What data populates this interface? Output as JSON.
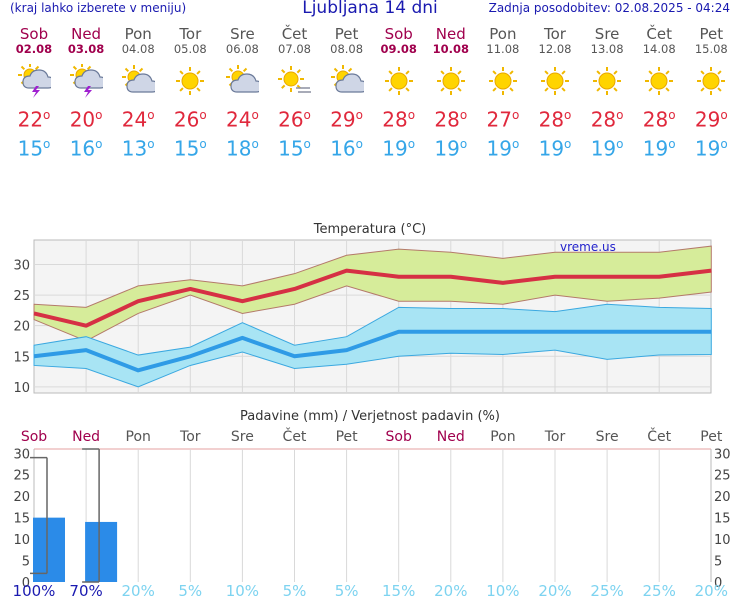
{
  "header": {
    "left_note": "(kraj lahko izberete v meniju)",
    "title": "Ljubljana 14 dni",
    "updated": "Zadnja posodobitev: 02.08.2025 - 04:24"
  },
  "days": [
    {
      "name": "Sob",
      "date": "02.08",
      "weekend": true,
      "icon": "sun-cloud-lightning-icon",
      "max": "22",
      "min": "15"
    },
    {
      "name": "Ned",
      "date": "03.08",
      "weekend": true,
      "icon": "sun-cloud-lightning-icon",
      "max": "20",
      "min": "16"
    },
    {
      "name": "Pon",
      "date": "04.08",
      "weekend": false,
      "icon": "sun-cloud-icon",
      "max": "24",
      "min": "13"
    },
    {
      "name": "Tor",
      "date": "05.08",
      "weekend": false,
      "icon": "sun-icon",
      "max": "26",
      "min": "15"
    },
    {
      "name": "Sre",
      "date": "06.08",
      "weekend": false,
      "icon": "sun-cloud-icon",
      "max": "24",
      "min": "18"
    },
    {
      "name": "Čet",
      "date": "07.08",
      "weekend": false,
      "icon": "sun-haze-icon",
      "max": "26",
      "min": "15"
    },
    {
      "name": "Pet",
      "date": "08.08",
      "weekend": false,
      "icon": "sun-cloud-icon",
      "max": "29",
      "min": "16"
    },
    {
      "name": "Sob",
      "date": "09.08",
      "weekend": true,
      "icon": "sun-icon",
      "max": "28",
      "min": "19"
    },
    {
      "name": "Ned",
      "date": "10.08",
      "weekend": true,
      "icon": "sun-icon",
      "max": "28",
      "min": "19"
    },
    {
      "name": "Pon",
      "date": "11.08",
      "weekend": false,
      "icon": "sun-icon",
      "max": "27",
      "min": "19"
    },
    {
      "name": "Tor",
      "date": "12.08",
      "weekend": false,
      "icon": "sun-icon",
      "max": "28",
      "min": "19"
    },
    {
      "name": "Sre",
      "date": "13.08",
      "weekend": false,
      "icon": "sun-icon",
      "max": "28",
      "min": "19"
    },
    {
      "name": "Čet",
      "date": "14.08",
      "weekend": false,
      "icon": "sun-icon",
      "max": "28",
      "min": "19"
    },
    {
      "name": "Pet",
      "date": "15.08",
      "weekend": false,
      "icon": "sun-icon",
      "max": "29",
      "min": "19"
    }
  ],
  "degree_sign": "o",
  "colors": {
    "max": "#e0283c",
    "min": "#35a6e8",
    "weekend": "#a0004d",
    "max_line": "#d63044",
    "max_band": "#d6ec9a",
    "min_line": "#2f9be6",
    "min_band": "#a8e4f4",
    "bar": "#2b8be8",
    "prob": "#7dd3f0"
  },
  "chart_data": [
    {
      "type": "line",
      "title": "Temperatura (°C)",
      "watermark": "vreme.us",
      "categories": [
        "Sob",
        "Ned",
        "Pon",
        "Tor",
        "Sre",
        "Čet",
        "Pet",
        "Sob",
        "Ned",
        "Pon",
        "Tor",
        "Sre",
        "Čet",
        "Pet"
      ],
      "ylim": [
        9,
        34
      ],
      "yticks": [
        10,
        15,
        20,
        25,
        30
      ],
      "grid": true,
      "series": [
        {
          "role": "max",
          "values": [
            22,
            20,
            24,
            26,
            24,
            26,
            29,
            28,
            28,
            27,
            28,
            28,
            28,
            29
          ]
        },
        {
          "role": "max_upper",
          "values": [
            23.5,
            23,
            26.5,
            27.5,
            26.5,
            28.5,
            31.5,
            32.5,
            32,
            31,
            32,
            32,
            32,
            33
          ]
        },
        {
          "role": "max_lower",
          "values": [
            21,
            17.5,
            22,
            25,
            22,
            23.5,
            26.5,
            24,
            24,
            23.5,
            25,
            24,
            24.5,
            25.5
          ]
        },
        {
          "role": "min",
          "values": [
            15,
            16,
            12.7,
            15,
            18,
            15,
            16,
            19,
            19,
            19,
            19,
            19,
            19,
            19
          ]
        },
        {
          "role": "min_upper",
          "values": [
            16.8,
            18.2,
            15.2,
            16.5,
            20.5,
            16.8,
            18.2,
            23,
            22.8,
            22.8,
            22.3,
            23.5,
            23,
            22.8
          ]
        },
        {
          "role": "min_lower",
          "values": [
            13.5,
            13,
            10,
            13.5,
            15.7,
            13,
            13.7,
            15,
            15.5,
            15.3,
            16,
            14.5,
            15.2,
            15.3
          ]
        }
      ]
    },
    {
      "type": "bar",
      "title": "Padavine (mm) / Verjetnost padavin (%)",
      "categories": [
        "Sob",
        "Ned",
        "Pon",
        "Tor",
        "Sre",
        "Čet",
        "Pet",
        "Sob",
        "Ned",
        "Pon",
        "Tor",
        "Sre",
        "Čet",
        "Pet"
      ],
      "ylim": [
        0,
        31
      ],
      "yticks": [
        0,
        5,
        10,
        15,
        20,
        25,
        30
      ],
      "values": [
        15,
        14,
        0,
        0,
        0,
        0,
        0,
        0,
        0,
        0,
        0,
        0,
        0,
        0
      ],
      "error_range": [
        [
          2,
          29
        ],
        [
          0,
          31
        ]
      ],
      "probability": [
        "100%",
        "70%",
        "20%",
        "5%",
        "10%",
        "5%",
        "5%",
        "15%",
        "20%",
        "10%",
        "20%",
        "25%",
        "25%",
        "20%"
      ]
    }
  ]
}
